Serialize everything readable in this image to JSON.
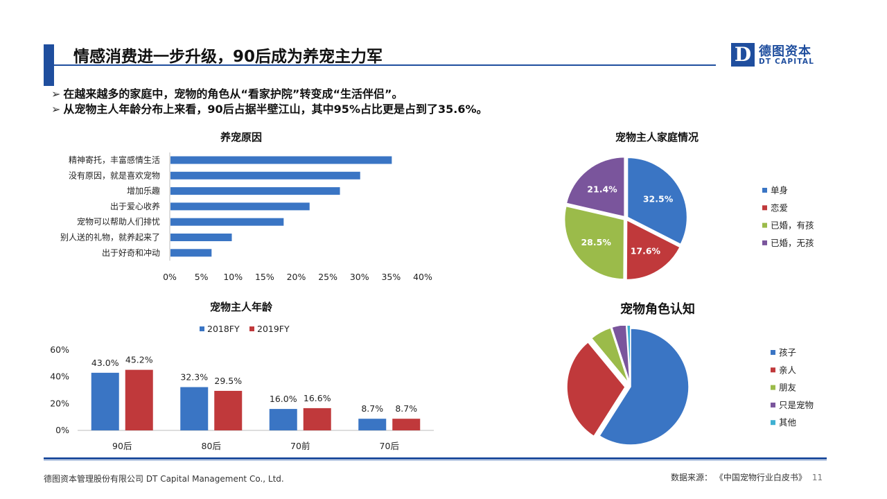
{
  "header": {
    "title": "情感消费进一步升级，90后成为养宠主力军",
    "logo_letter": "D",
    "logo_cn": "德图资本",
    "logo_en": "DT CAPITAL"
  },
  "bullets": [
    "在越来越多的家庭中，宠物的角色从“看家护院”转变成“生活伴侣”。",
    "从宠物主人年龄分布上来看，90后占据半壁江山，其中95%占比更是占到了35.6%。"
  ],
  "colors": {
    "blue": "#3a75c4",
    "red": "#c0393b",
    "green": "#9bbb4a",
    "purple": "#7a559c",
    "cyan": "#3fb0d2",
    "brand": "#1f4e9e"
  },
  "chart_data": [
    {
      "type": "bar",
      "orientation": "horizontal",
      "title": "养宠原因",
      "categories": [
        "精神寄托，丰富感情生活",
        "没有原因，就是喜欢宠物",
        "增加乐趣",
        "出于爱心收养",
        "宠物可以帮助人们排忧",
        "别人送的礼物，就养起来了",
        "出于好奇和冲动"
      ],
      "values": [
        35.0,
        30.0,
        26.8,
        22.0,
        17.9,
        9.7,
        6.5
      ],
      "xlim": [
        0,
        40
      ],
      "xticks": [
        "0%",
        "5%",
        "10%",
        "15%",
        "20%",
        "25%",
        "30%",
        "35%",
        "40%"
      ]
    },
    {
      "type": "pie",
      "title": "宠物主人家庭情况",
      "labels": [
        "单身",
        "恋爱",
        "已婚，有孩",
        "已婚，无孩"
      ],
      "values": [
        32.5,
        17.6,
        28.5,
        21.4
      ],
      "value_labels": [
        "32.5%",
        "17.6%",
        "28.5%",
        "21.4%"
      ],
      "legend": "right"
    },
    {
      "type": "bar",
      "title": "宠物主人年龄",
      "categories": [
        "90后",
        "80后",
        "70前",
        "70后"
      ],
      "series": [
        {
          "name": "2018FY",
          "values": [
            43.0,
            32.3,
            16.0,
            8.7
          ],
          "labels": [
            "43.0%",
            "32.3%",
            "16.0%",
            "8.7%"
          ]
        },
        {
          "name": "2019FY",
          "values": [
            45.2,
            29.5,
            16.6,
            8.7
          ],
          "labels": [
            "45.2%",
            "29.5%",
            "16.6%",
            "8.7%"
          ]
        }
      ],
      "ylim": [
        0,
        60
      ],
      "yticks": [
        "0%",
        "20%",
        "40%",
        "60%"
      ],
      "legend": "top"
    },
    {
      "type": "pie",
      "title": "宠物角色认知",
      "labels": [
        "孩子",
        "亲人",
        "朋友",
        "只是宠物",
        "其他"
      ],
      "values": [
        59.0,
        30.0,
        6.0,
        4.0,
        1.0
      ],
      "legend": "right"
    }
  ],
  "footer": {
    "company": "德图资本管理股份有限公司  DT Capital Management  Co., Ltd.",
    "source": "数据来源：  《中国宠物行业白皮书》",
    "page": "11"
  }
}
